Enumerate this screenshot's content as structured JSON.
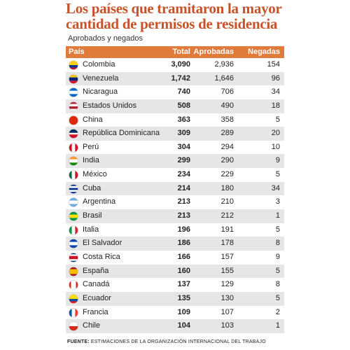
{
  "header": {
    "title": [
      "Los países que tramitaron la mayor",
      "cantidad de permisos de residencia"
    ],
    "subtitle": "Aprobados y negados"
  },
  "table": {
    "columns": [
      "País",
      "Total",
      "Aprobadas",
      "Negadas"
    ],
    "rows": [
      [
        "Colombia",
        "3,090",
        "2,936",
        "154"
      ],
      [
        "Venezuela",
        "1,742",
        "1,646",
        "96"
      ],
      [
        "Nicaragua",
        "740",
        "706",
        "34"
      ],
      [
        "Estados Unidos",
        "508",
        "490",
        "18"
      ],
      [
        "China",
        "363",
        "358",
        "5"
      ],
      [
        "República Dominicana",
        "309",
        "289",
        "20"
      ],
      [
        "Perú",
        "304",
        "294",
        "10"
      ],
      [
        "India",
        "299",
        "290",
        "9"
      ],
      [
        "México",
        "234",
        "229",
        "5"
      ],
      [
        "Cuba",
        "214",
        "180",
        "34"
      ],
      [
        "Argentina",
        "213",
        "210",
        "3"
      ],
      [
        "Brasil",
        "213",
        "212",
        "1"
      ],
      [
        "Italia",
        "196",
        "191",
        "5"
      ],
      [
        "El Salvador",
        "186",
        "178",
        "8"
      ],
      [
        "Costa Rica",
        "166",
        "157",
        "9"
      ],
      [
        "España",
        "160",
        "155",
        "5"
      ],
      [
        "Canadá",
        "137",
        "129",
        "8"
      ],
      [
        "Ecuador",
        "135",
        "130",
        "5"
      ],
      [
        "Francia",
        "109",
        "107",
        "2"
      ],
      [
        "Chile",
        "104",
        "103",
        "1"
      ]
    ]
  },
  "footer": {
    "label": "FUENTE:",
    "text": "ESTIMACIONES DE LA ORGANIZACIÓN INTERNACIONAL DEL TRABAJO"
  }
}
